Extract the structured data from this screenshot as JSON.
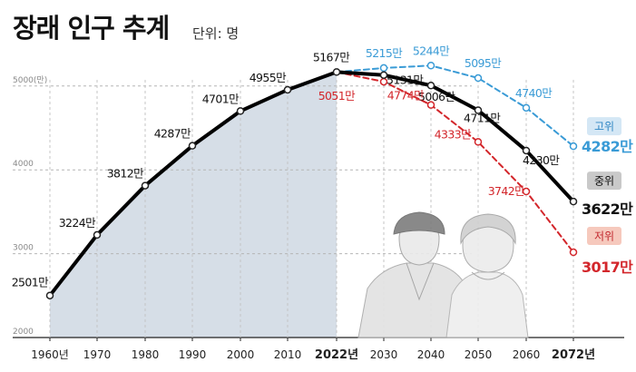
{
  "title": "장래 인구 추계",
  "unit": "단위: 명",
  "colors": {
    "medium": "#000000",
    "high": "#3a9bd6",
    "low": "#d3262b",
    "area": "#d6dee7"
  },
  "chart_data": {
    "type": "line",
    "title": "장래 인구 추계",
    "unit": "단위: 명",
    "ylim": [
      2000,
      5200
    ],
    "yticks": [
      "2000",
      "3000",
      "4000",
      "5000(만)"
    ],
    "ytick_values": [
      2000,
      3000,
      4000,
      5000
    ],
    "x_tick_labels": [
      "1960년",
      "1970",
      "1980",
      "1990",
      "2000",
      "2010",
      "2022년",
      "2030",
      "2040",
      "2050",
      "2060",
      "2072년"
    ],
    "x_tick_values": [
      1960,
      1970,
      1980,
      1990,
      2000,
      2010,
      2022,
      2030,
      2040,
      2050,
      2060,
      2072
    ],
    "grid": "dashed horizontal",
    "series": [
      {
        "key": "historical",
        "x": [
          1960,
          1970,
          1980,
          1990,
          2000,
          2010,
          2022
        ],
        "y": [
          2501,
          3224,
          3812,
          4287,
          4701,
          4955,
          5167
        ],
        "labels": [
          "2501만",
          "3224만",
          "3812만",
          "4287만",
          "4701만",
          "4955만",
          "5167만"
        ]
      },
      {
        "key": "high",
        "name": "고위",
        "x": [
          2022,
          2030,
          2040,
          2050,
          2060,
          2072
        ],
        "y": [
          5167,
          5215,
          5244,
          5095,
          4740,
          4282
        ],
        "labels": [
          "",
          "5215만",
          "5244만",
          "5095만",
          "4740만",
          "4282만"
        ]
      },
      {
        "key": "medium",
        "name": "중위",
        "x": [
          2022,
          2030,
          2040,
          2050,
          2060,
          2072
        ],
        "y": [
          5167,
          5131,
          5006,
          4711,
          4230,
          3622
        ],
        "labels": [
          "",
          "5131만",
          "5006만",
          "4711만",
          "4230만",
          "3622만"
        ]
      },
      {
        "key": "low",
        "name": "저위",
        "x": [
          2022,
          2030,
          2040,
          2050,
          2060,
          2072
        ],
        "y": [
          5167,
          5051,
          4774,
          4333,
          3742,
          3017
        ],
        "labels": [
          "",
          "5051만",
          "4774만",
          "4333만",
          "3742만",
          "3017만"
        ]
      }
    ]
  }
}
